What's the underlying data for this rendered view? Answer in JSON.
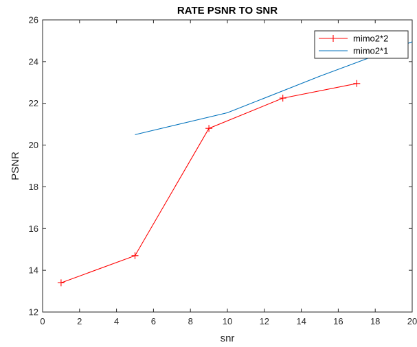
{
  "chart_data": {
    "type": "line",
    "title": "RATE PSNR TO SNR",
    "xlabel": "snr",
    "ylabel": "PSNR",
    "xlim": [
      0,
      20
    ],
    "ylim": [
      12,
      26
    ],
    "xticks": [
      0,
      2,
      4,
      6,
      8,
      10,
      12,
      14,
      16,
      18,
      20
    ],
    "yticks": [
      12,
      14,
      16,
      18,
      20,
      22,
      24,
      26
    ],
    "grid": false,
    "legend_position": "top-right",
    "series": [
      {
        "name": "mimo2*2",
        "color": "#ff0000",
        "marker": "plus",
        "x": [
          1,
          5,
          9,
          13,
          17
        ],
        "y": [
          13.4,
          14.7,
          20.8,
          22.25,
          22.95
        ]
      },
      {
        "name": "mimo2*1",
        "color": "#0072bd",
        "marker": "none",
        "x": [
          5,
          10,
          15,
          20
        ],
        "y": [
          20.5,
          21.55,
          23.3,
          24.95
        ]
      }
    ]
  }
}
